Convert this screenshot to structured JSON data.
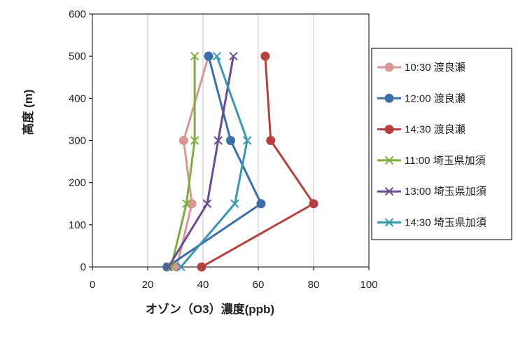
{
  "chart_data": {
    "type": "line",
    "title": "",
    "xlabel": "オゾン（O3）濃度(ppb)",
    "ylabel": "高度 (m)",
    "xlim": [
      0,
      100
    ],
    "ylim": [
      0,
      600
    ],
    "xticks": [
      0,
      20,
      40,
      60,
      80,
      100
    ],
    "yticks": [
      0,
      100,
      200,
      300,
      400,
      500,
      600
    ],
    "grid": "vertical",
    "legend_position": "right",
    "series": [
      {
        "name": "10:30 渡良瀬",
        "color": "#d99694",
        "marker": "circle",
        "points": [
          [
            30.5,
            0
          ],
          [
            36,
            150
          ],
          [
            33,
            300
          ],
          [
            42,
            500
          ]
        ]
      },
      {
        "name": "12:00 渡良瀬",
        "color": "#3c6eaa",
        "marker": "circle",
        "points": [
          [
            27,
            0
          ],
          [
            61,
            150
          ],
          [
            50,
            300
          ],
          [
            42,
            500
          ]
        ]
      },
      {
        "name": "14:30 渡良瀬",
        "color": "#b5403d",
        "marker": "circle",
        "points": [
          [
            39.5,
            0
          ],
          [
            80,
            150
          ],
          [
            64.5,
            300
          ],
          [
            62.5,
            500
          ]
        ]
      },
      {
        "name": "11:00 埼玉県加須",
        "color": "#7fae3f",
        "marker": "x",
        "points": [
          [
            28.5,
            0
          ],
          [
            34,
            150
          ],
          [
            37,
            300
          ],
          [
            37,
            500
          ]
        ]
      },
      {
        "name": "13:00 埼玉県加須",
        "color": "#6a4c93",
        "marker": "x",
        "points": [
          [
            27.5,
            0
          ],
          [
            41.5,
            150
          ],
          [
            45.5,
            300
          ],
          [
            51,
            500
          ]
        ]
      },
      {
        "name": "14:30 埼玉県加須",
        "color": "#3a98ae",
        "marker": "x",
        "points": [
          [
            32,
            0
          ],
          [
            51.5,
            150
          ],
          [
            56,
            300
          ],
          [
            45,
            500
          ]
        ]
      }
    ]
  }
}
